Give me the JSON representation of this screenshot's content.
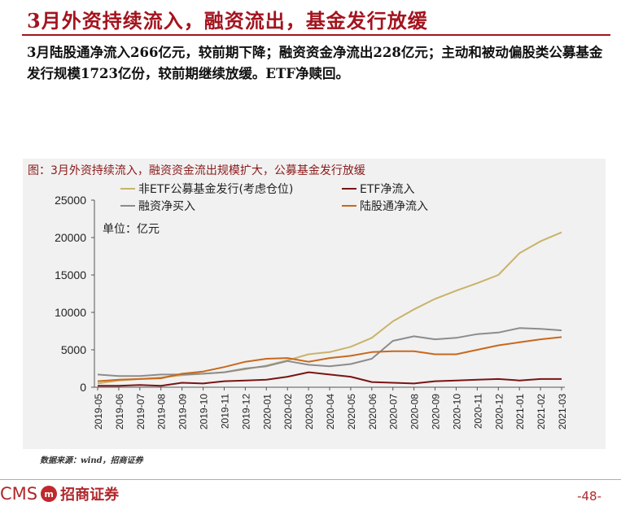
{
  "header": {
    "title": "3月外资持续流入，融资流出，基金发行放缓",
    "summary": "3月陆股通净流入266亿元，较前期下降；融资资金净流出228亿元；主动和被动偏股类公募基金发行规模1723亿份，较前期继续放缓。ETF净赎回。"
  },
  "chart_data": {
    "type": "line",
    "title": "图：3月外资持续流入，融资资金流出规模扩大，公募基金发行放缓",
    "unit_label": "单位：亿元",
    "xlabel": "",
    "ylabel": "",
    "ylim": [
      0,
      25000
    ],
    "yticks": [
      0,
      5000,
      10000,
      15000,
      20000,
      25000
    ],
    "grid": false,
    "legend_position": "top",
    "categories": [
      "2019-05",
      "2019-06",
      "2019-07",
      "2019-08",
      "2019-09",
      "2019-10",
      "2019-11",
      "2019-12",
      "2020-01",
      "2020-02",
      "2020-03",
      "2020-04",
      "2020-05",
      "2020-06",
      "2020-07",
      "2020-08",
      "2020-09",
      "2020-10",
      "2020-11",
      "2020-12",
      "2021-01",
      "2021-02",
      "2021-03"
    ],
    "series": [
      {
        "name": "非ETF公募基金发行(考虑仓位)",
        "color": "#c9b36a",
        "values": [
          500,
          900,
          1100,
          1300,
          1600,
          1800,
          2000,
          2400,
          2900,
          3600,
          4400,
          4700,
          5400,
          6600,
          8800,
          10400,
          11800,
          12900,
          13900,
          15000,
          17900,
          19500,
          20700
        ]
      },
      {
        "name": "ETF净流入",
        "color": "#7a1414",
        "values": [
          200,
          200,
          300,
          200,
          600,
          500,
          800,
          900,
          1000,
          1400,
          2000,
          1700,
          1400,
          700,
          600,
          500,
          800,
          900,
          1000,
          1100,
          900,
          1100,
          1100
        ]
      },
      {
        "name": "融资净买入",
        "color": "#8c8c8c",
        "values": [
          1700,
          1500,
          1500,
          1700,
          1700,
          1800,
          2000,
          2500,
          2800,
          3500,
          3000,
          2800,
          3100,
          3800,
          6200,
          6800,
          6400,
          6600,
          7100,
          7300,
          7900,
          7800,
          7600
        ]
      },
      {
        "name": "陆股通净流入",
        "color": "#c8681e",
        "values": [
          800,
          1000,
          1100,
          1200,
          1800,
          2100,
          2700,
          3400,
          3800,
          3900,
          3400,
          3900,
          4200,
          4700,
          4800,
          4800,
          4400,
          4400,
          5000,
          5600,
          6000,
          6400,
          6700
        ]
      }
    ]
  },
  "footer": {
    "source": "数据来源：wind，招商证券",
    "logo_latin": "CMS",
    "logo_mark": "m",
    "logo_cn": "招商证券",
    "page_number": "-48-"
  }
}
